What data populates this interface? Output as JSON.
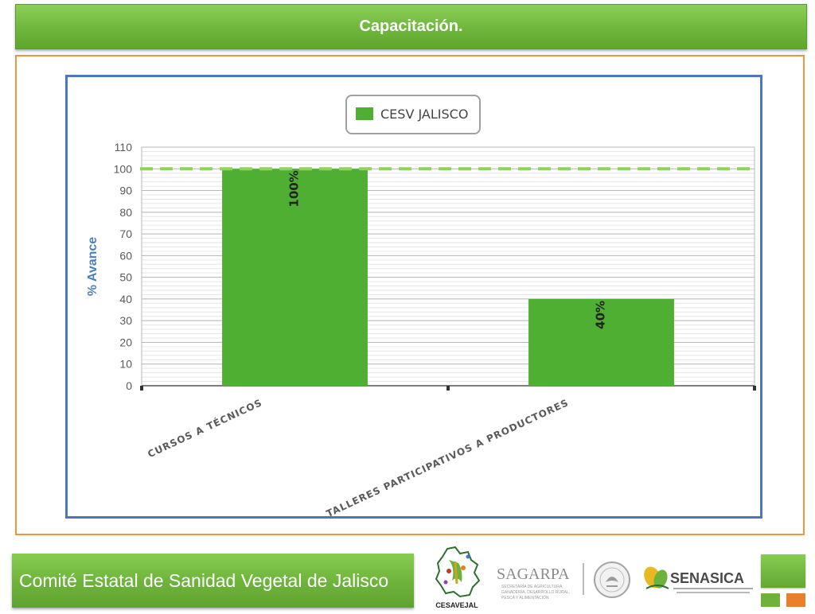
{
  "header": {
    "title": "Capacitación."
  },
  "footer": {
    "org_name": "Comité Estatal de Sanidad Vegetal de Jalisco"
  },
  "logos": [
    {
      "name": "cesavejal-logo",
      "text": "CESAVEJAL"
    },
    {
      "name": "sagarpa-logo",
      "text": "SAGARPA",
      "subtext": [
        "SECRETARÍA DE AGRICULTURA,",
        "GANADERÍA, DESARROLLO RURAL,",
        "PESCA Y ALIMENTACIÓN"
      ]
    },
    {
      "name": "mexico-seal-logo"
    },
    {
      "name": "senasica-logo",
      "text": "SENASICA"
    }
  ],
  "colors": {
    "accent_green": "#6db33b",
    "bar_green": "#4faf32",
    "target_line": "#8fd45a",
    "frame_orange": "#f0953a",
    "axis_blue": "#4a7fb8",
    "deco_orange": "#e8812e"
  },
  "chart_data": {
    "type": "bar",
    "categories": [
      "CURSOS A TÉCNICOS",
      "TALLERES PARTICIPATIVOS A PRODUCTORES"
    ],
    "series": [
      {
        "name": "CESV JALISCO",
        "values": [
          100,
          40
        ],
        "labels": [
          "100%",
          "40%"
        ],
        "color": "#4faf32"
      }
    ],
    "ylabel": "% Avance",
    "ylim": [
      0,
      110
    ],
    "yticks": [
      0,
      10,
      20,
      30,
      40,
      50,
      60,
      70,
      80,
      90,
      100,
      110
    ],
    "reference_line": {
      "value": 100,
      "style": "dashed",
      "color": "#8fd45a"
    },
    "grid": true,
    "legend": "top-center"
  }
}
